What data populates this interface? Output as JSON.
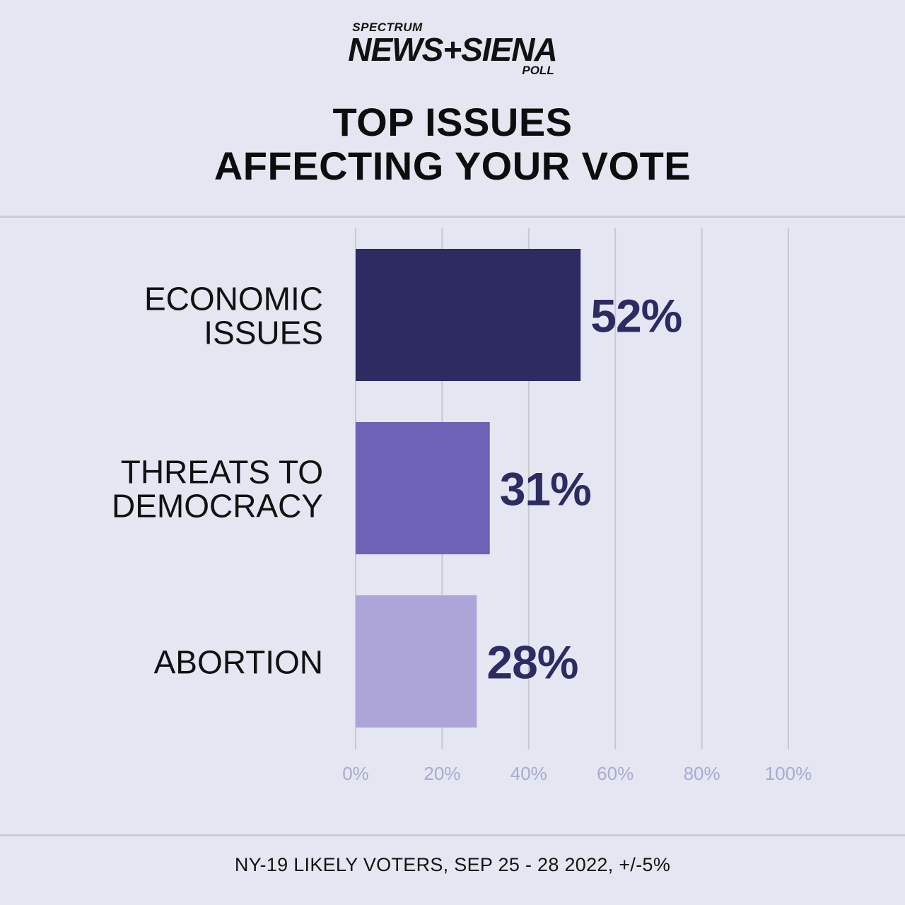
{
  "branding": {
    "logo_top": "SPECTRUM",
    "logo_main": "NEWS+SIENA",
    "logo_bottom": "POLL"
  },
  "title_lines": [
    "TOP ISSUES",
    "AFFECTING YOUR VOTE"
  ],
  "footer": "NY-19 LIKELY VOTERS, SEP 25 - 28 2022, +/-5%",
  "colors": {
    "background": "#e4e7f2",
    "bar_1": "#2e2b63",
    "bar_2": "#6e62b6",
    "bar_3": "#ada4d8",
    "value_text": "#2e2b63",
    "tick_text": "#aaa9d2",
    "grid": "#c8c9d0"
  },
  "chart_data": {
    "type": "bar",
    "orientation": "horizontal",
    "categories": [
      [
        "ECONOMIC",
        "ISSUES"
      ],
      [
        "THREATS TO",
        "DEMOCRACY"
      ],
      [
        "ABORTION"
      ]
    ],
    "values": [
      52,
      31,
      28
    ],
    "value_labels": [
      "52%",
      "31%",
      "28%"
    ],
    "xlim": [
      0,
      100
    ],
    "xticks": [
      0,
      20,
      40,
      60,
      80,
      100
    ],
    "xtick_labels": [
      "0%",
      "20%",
      "40%",
      "60%",
      "80%",
      "100%"
    ],
    "grid": true
  }
}
